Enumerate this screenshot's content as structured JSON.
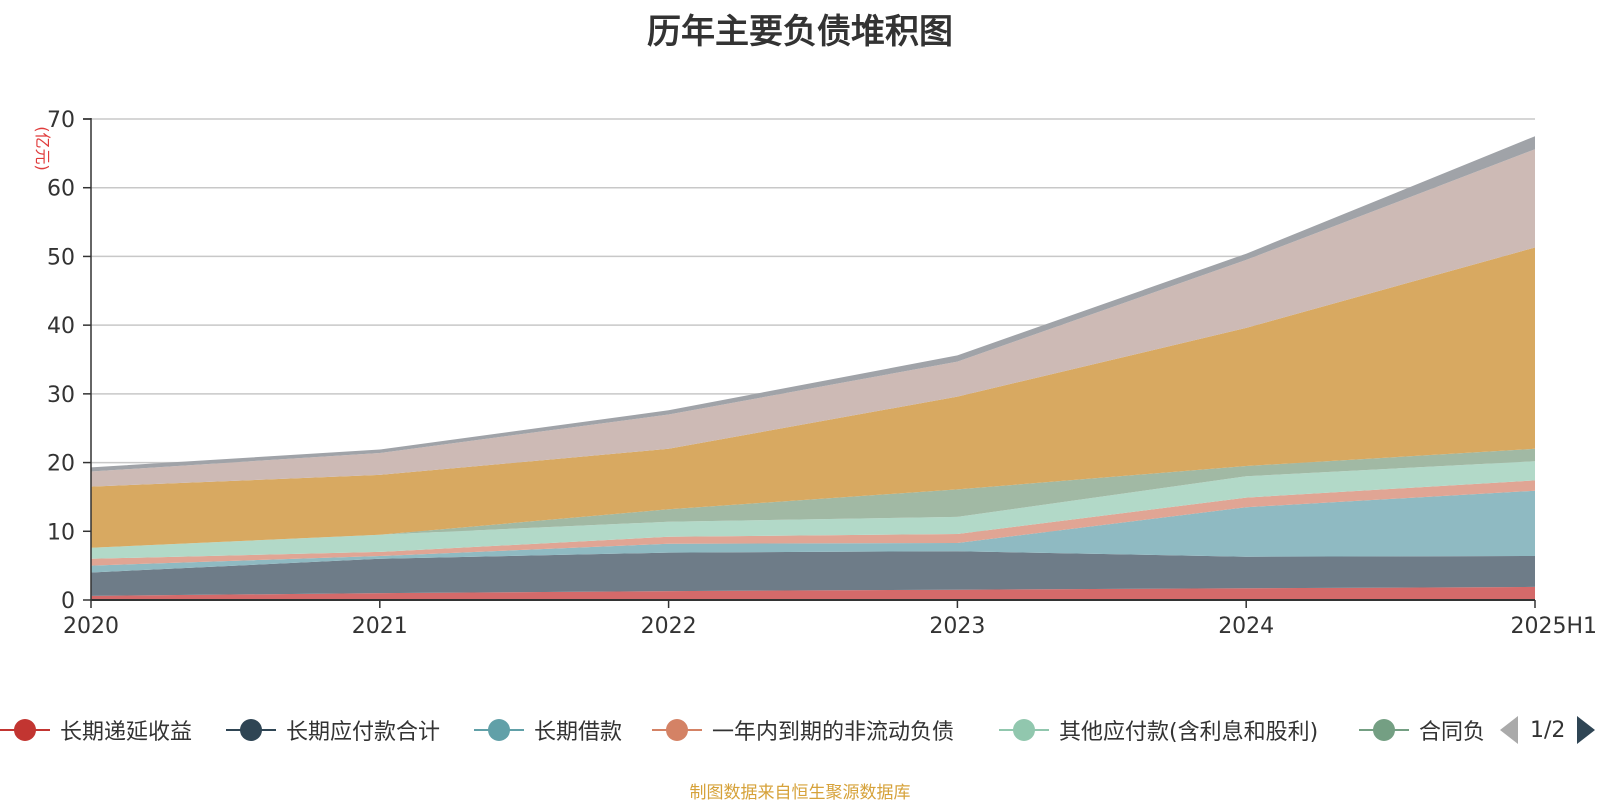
{
  "title": "历年主要负债堆积图",
  "unit_label": "(亿元)",
  "source": "制图数据来自恒生聚源数据库",
  "legend_pager": "1/2",
  "legend": [
    {
      "name": "长期递延收益",
      "color": "#c23531"
    },
    {
      "name": "长期应付款合计",
      "color": "#2f4554"
    },
    {
      "name": "长期借款",
      "color": "#61a0a8"
    },
    {
      "name": "一年内到期的非流动负债",
      "color": "#d48265"
    },
    {
      "name": "其他应付款(含利息和股利)",
      "color": "#91c7ae"
    },
    {
      "name": "合同负",
      "color": "#749f83"
    }
  ],
  "chart_data": {
    "type": "area",
    "stacked": true,
    "title": "历年主要负债堆积图",
    "ylabel": "(亿元)",
    "ylim": [
      0,
      70
    ],
    "yticks": [
      0,
      10,
      20,
      30,
      40,
      50,
      60,
      70
    ],
    "grid": true,
    "legend_position": "bottom",
    "categories": [
      "2020",
      "2021",
      "2022",
      "2023",
      "2024",
      "2025H1"
    ],
    "series": [
      {
        "name": "长期递延收益",
        "color": "#d46a6a",
        "values": [
          0.6,
          1.0,
          1.3,
          1.5,
          1.7,
          1.9
        ]
      },
      {
        "name": "长期应付款合计",
        "color": "#6e7c88",
        "values": [
          3.4,
          5.0,
          5.6,
          5.6,
          4.6,
          4.5
        ]
      },
      {
        "name": "长期借款",
        "color": "#8fbac2",
        "values": [
          1.0,
          0.4,
          1.3,
          1.2,
          7.2,
          9.5
        ]
      },
      {
        "name": "一年内到期的非流动负债",
        "color": "#e0a594",
        "values": [
          1.0,
          0.6,
          1.0,
          1.3,
          1.4,
          1.5
        ]
      },
      {
        "name": "其他应付款(含利息和股利)",
        "color": "#b2d9c8",
        "values": [
          1.6,
          2.5,
          2.2,
          2.5,
          3.1,
          2.8
        ]
      },
      {
        "name": "合同负",
        "color": "#a1b9a4",
        "values": [
          0.0,
          0.0,
          1.8,
          4.0,
          1.5,
          1.8
        ]
      },
      {
        "name": "",
        "color": "#d8a961",
        "values": [
          8.9,
          8.7,
          8.8,
          13.5,
          20.1,
          29.3
        ]
      },
      {
        "name": "",
        "color": "#cdbab5",
        "values": [
          2.2,
          3.2,
          5.0,
          5.1,
          9.9,
          14.3
        ]
      },
      {
        "name": "",
        "color": "#a0a3a8",
        "values": [
          0.6,
          0.5,
          0.6,
          0.9,
          0.9,
          1.9
        ]
      }
    ]
  }
}
